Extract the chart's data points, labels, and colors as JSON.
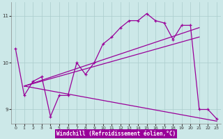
{
  "bg_color": "#cce8e8",
  "line_color": "#990099",
  "grid_color": "#aacccc",
  "xlabel": "Windchill (Refroidissement éolien,°C)",
  "ylim": [
    8.7,
    11.3
  ],
  "xlim": [
    -0.5,
    23.5
  ],
  "yticks": [
    9,
    10,
    11
  ],
  "xticks": [
    0,
    1,
    2,
    3,
    4,
    5,
    6,
    7,
    8,
    9,
    10,
    11,
    12,
    13,
    14,
    15,
    16,
    17,
    18,
    19,
    20,
    21,
    22,
    23
  ],
  "main_x": [
    0,
    1,
    2,
    3,
    4,
    5,
    6,
    7,
    8,
    9,
    10,
    11,
    12,
    13,
    14,
    15,
    16,
    17,
    18,
    19,
    20,
    21,
    22,
    23
  ],
  "main_y": [
    10.3,
    9.3,
    9.6,
    9.7,
    8.85,
    9.3,
    9.3,
    10.0,
    9.75,
    10.0,
    10.4,
    10.55,
    10.75,
    10.9,
    10.9,
    11.05,
    10.9,
    10.85,
    10.5,
    10.8,
    10.8,
    9.0,
    9.0,
    8.8
  ],
  "line1_x": [
    1,
    21
  ],
  "line1_y": [
    9.5,
    10.55
  ],
  "line2_x": [
    1,
    21
  ],
  "line2_y": [
    9.5,
    10.75
  ],
  "line3_x": [
    1,
    23
  ],
  "line3_y": [
    9.5,
    8.75
  ]
}
